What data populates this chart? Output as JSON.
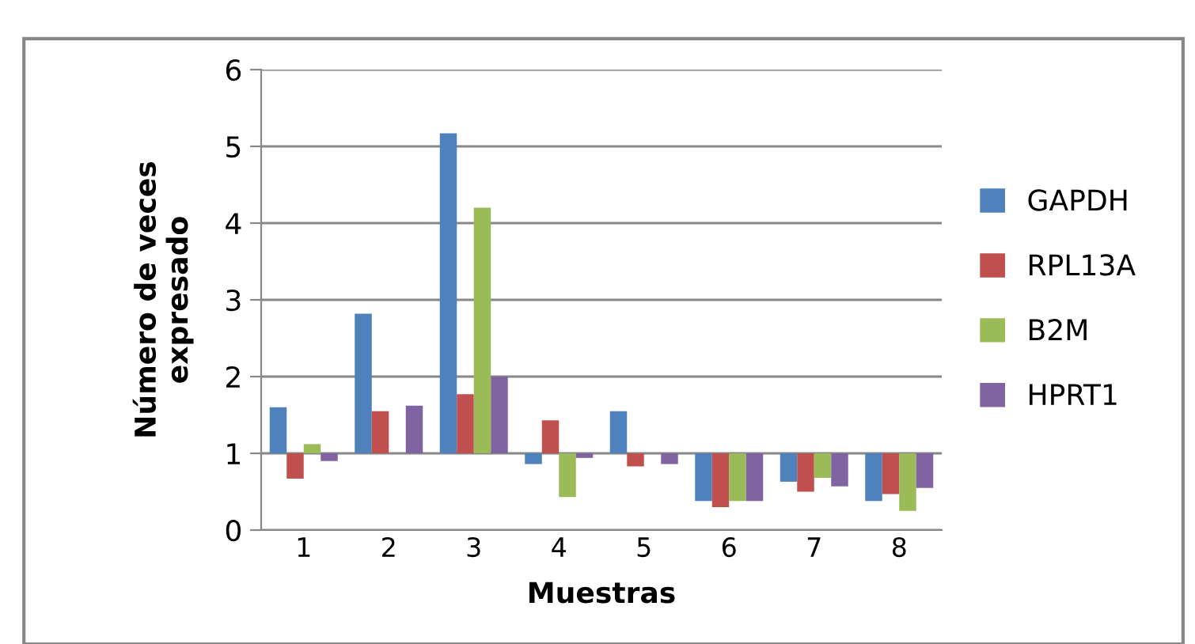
{
  "chart_data": {
    "type": "bar",
    "xlabel": "Muestras",
    "ylabel": "Número de veces\nexpresado",
    "categories": [
      "1",
      "2",
      "3",
      "4",
      "5",
      "6",
      "7",
      "8"
    ],
    "series": [
      {
        "name": "GAPDH",
        "color": "#4f81bd",
        "base": [
          1,
          1,
          1,
          1,
          1,
          1,
          1,
          1
        ],
        "values": [
          0.6,
          1.82,
          4.17,
          -0.14,
          0.55,
          -0.62,
          -0.37,
          -0.62
        ]
      },
      {
        "name": "RPL13A",
        "color": "#c0504d",
        "base": [
          1,
          1,
          1,
          1,
          1,
          1,
          1,
          1
        ],
        "values": [
          -0.33,
          0.55,
          0.77,
          0.43,
          -0.17,
          -0.7,
          -0.5,
          -0.53
        ]
      },
      {
        "name": "B2M",
        "color": "#9bbb59",
        "base": [
          1,
          null,
          1,
          1,
          null,
          1,
          1,
          1
        ],
        "values": [
          0.12,
          null,
          3.2,
          -0.57,
          null,
          -0.62,
          -0.32,
          -0.75
        ]
      },
      {
        "name": "HPRT1",
        "color": "#8064a2",
        "base": [
          1,
          1,
          1,
          1,
          1,
          1,
          1,
          1
        ],
        "values": [
          -0.1,
          0.62,
          1.0,
          -0.06,
          -0.14,
          -0.62,
          -0.43,
          -0.45
        ]
      }
    ],
    "ylim": [
      0,
      6
    ],
    "yticks": [
      0,
      1,
      2,
      3,
      4,
      5,
      6
    ],
    "grid": "y",
    "legend": "right"
  }
}
